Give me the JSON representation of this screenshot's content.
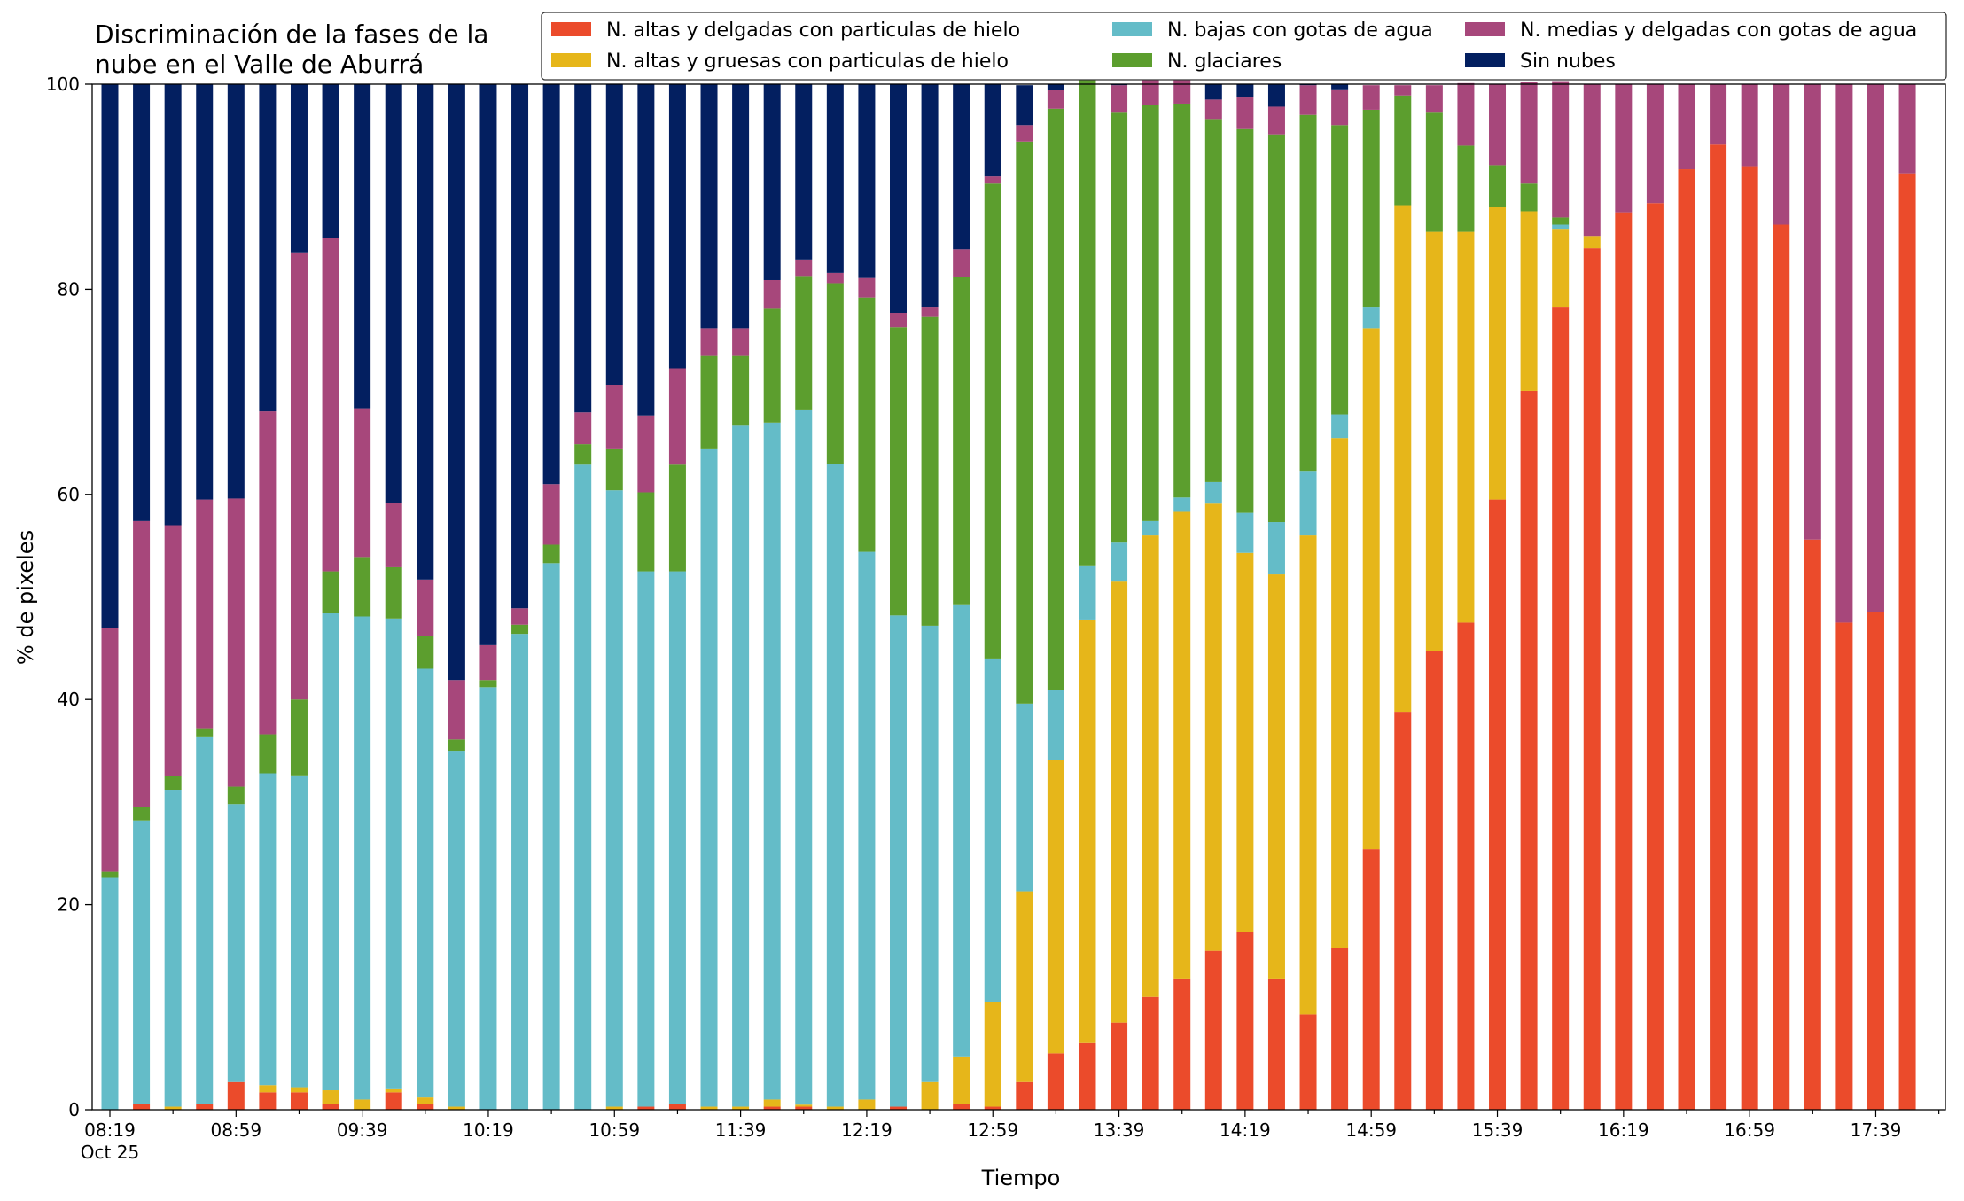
{
  "chart_data": {
    "type": "bar",
    "stacked": true,
    "title": "Discriminación de la fases de la\nnube en el Valle de Aburrá",
    "xlabel": "Tiempo",
    "ylabel": "% de pixeles",
    "ylim": [
      0,
      100
    ],
    "yticks": [
      0,
      20,
      40,
      60,
      80,
      100
    ],
    "legend_position": "top-right",
    "x_tick_labels": [
      {
        "index": 0,
        "label": "08:19",
        "sublabel": "Oct 25"
      },
      {
        "index": 4,
        "label": "08:59"
      },
      {
        "index": 8,
        "label": "09:39"
      },
      {
        "index": 12,
        "label": "10:19"
      },
      {
        "index": 16,
        "label": "10:59"
      },
      {
        "index": 20,
        "label": "11:39"
      },
      {
        "index": 24,
        "label": "12:19"
      },
      {
        "index": 28,
        "label": "12:59"
      },
      {
        "index": 32,
        "label": "13:39"
      },
      {
        "index": 36,
        "label": "14:19"
      },
      {
        "index": 40,
        "label": "14:59"
      },
      {
        "index": 44,
        "label": "15:39"
      },
      {
        "index": 48,
        "label": "16:19"
      },
      {
        "index": 52,
        "label": "16:59"
      },
      {
        "index": 56,
        "label": "17:39"
      }
    ],
    "series": [
      {
        "name": "N. altas y delgadas con particulas de hielo",
        "color": "#eb4b2b",
        "values": [
          0,
          0.6,
          0,
          0.6,
          2.7,
          1.7,
          1.7,
          0.6,
          0,
          1.7,
          0.6,
          0,
          0,
          0,
          0,
          0,
          0,
          0.3,
          0.6,
          0,
          0,
          0.3,
          0.3,
          0,
          0,
          0.3,
          0,
          0.6,
          0.3,
          2.7,
          5.5,
          6.5,
          8.5,
          11,
          12.8,
          15.5,
          17.3,
          12.8,
          9.3,
          15.8,
          25.4,
          38.8,
          44.7,
          47.5,
          59.5,
          70.1,
          78.3,
          84,
          87.5,
          88.4,
          91.7,
          94.1,
          92,
          86.3,
          55.6,
          47.5,
          48.5,
          91.3
        ]
      },
      {
        "name": "N. altas y gruesas con particulas de hielo",
        "color": "#e6b61a",
        "values": [
          0,
          0,
          0.3,
          0,
          0,
          0.7,
          0.5,
          1.3,
          1,
          0.3,
          0.6,
          0.3,
          0,
          0,
          0,
          0,
          0.3,
          0,
          0,
          0.3,
          0.3,
          0.7,
          0.2,
          0.3,
          1,
          0,
          2.7,
          4.6,
          10.2,
          18.6,
          28.6,
          41.3,
          43,
          45,
          45.5,
          43.6,
          37,
          39.4,
          46.7,
          49.7,
          50.8,
          49.4,
          40.9,
          38.1,
          28.5,
          17.5,
          7.6,
          1.2,
          0,
          0,
          0,
          0,
          0,
          0,
          0,
          0,
          0,
          0
        ]
      },
      {
        "name": "N. bajas con gotas de agua",
        "color": "#64bcc8",
        "values": [
          22.6,
          27.6,
          30.9,
          35.8,
          27.1,
          30.4,
          30.4,
          46.5,
          47.1,
          45.9,
          41.8,
          34.7,
          41.2,
          46.4,
          53.3,
          62.9,
          60.1,
          52.2,
          51.9,
          64.1,
          66.4,
          66,
          67.7,
          62.7,
          53.4,
          47.9,
          44.5,
          44,
          33.5,
          18.3,
          6.8,
          5.2,
          3.8,
          1.4,
          1.4,
          2.1,
          3.9,
          5.1,
          6.3,
          2.3,
          2.1,
          0,
          0,
          0,
          0,
          0,
          0.4,
          0,
          0,
          0,
          0,
          0,
          0,
          0,
          0,
          0,
          0,
          0
        ]
      },
      {
        "name": "N. glaciares",
        "color": "#5c9e2e",
        "values": [
          0.6,
          1.3,
          1.3,
          0.8,
          1.7,
          3.8,
          7.4,
          4.1,
          5.8,
          5,
          3.2,
          1.1,
          0.7,
          0.9,
          1.8,
          2,
          4,
          7.7,
          10.4,
          9.1,
          6.8,
          11.1,
          13.1,
          17.6,
          24.8,
          28.1,
          30.1,
          32,
          46.3,
          54.8,
          56.7,
          51.1,
          42,
          40.6,
          38.4,
          35.4,
          37.5,
          37.8,
          34.7,
          28.2,
          19.2,
          10.7,
          11.7,
          8.4,
          4.1,
          2.7,
          0.7,
          0,
          0,
          0,
          0,
          0,
          0,
          0,
          0,
          0,
          0,
          0
        ]
      },
      {
        "name": "N. medias y delgadas con gotas de agua",
        "color": "#a7477b",
        "values": [
          23.8,
          27.9,
          24.5,
          22.3,
          28.1,
          31.5,
          43.6,
          32.5,
          14.5,
          6.3,
          5.5,
          5.8,
          3.4,
          1.6,
          5.9,
          3.1,
          6.3,
          7.5,
          9.4,
          2.7,
          2.7,
          2.8,
          1.6,
          1,
          1.9,
          1.4,
          1,
          2.7,
          0.7,
          1.6,
          1.8,
          0.8,
          2.6,
          2.4,
          2.6,
          1.9,
          3,
          2.7,
          2.9,
          3.5,
          2.4,
          1,
          2.6,
          6.1,
          7.9,
          9.9,
          13.3,
          14.8,
          12.5,
          11.6,
          8.3,
          5.9,
          8,
          13.7,
          44.4,
          52.5,
          51.5,
          8.7
        ]
      },
      {
        "name": "Sin nubes",
        "color": "#031f60",
        "values": [
          53,
          42.6,
          43,
          40.5,
          40.4,
          31.9,
          16.4,
          15,
          31.6,
          40.8,
          48.3,
          58.1,
          54.7,
          51.1,
          39,
          32,
          29.3,
          32.3,
          27.7,
          23.8,
          23.8,
          19.1,
          17.1,
          18.4,
          18.9,
          22.3,
          21.7,
          16.1,
          9,
          3.9,
          0.6,
          0.1,
          0.1,
          0.1,
          0.1,
          1.5,
          1.3,
          2.2,
          0.1,
          0.5,
          0,
          0,
          0,
          0,
          0,
          0,
          0,
          0,
          0,
          0,
          0,
          0,
          0,
          0,
          0,
          0,
          0,
          0
        ]
      }
    ]
  }
}
